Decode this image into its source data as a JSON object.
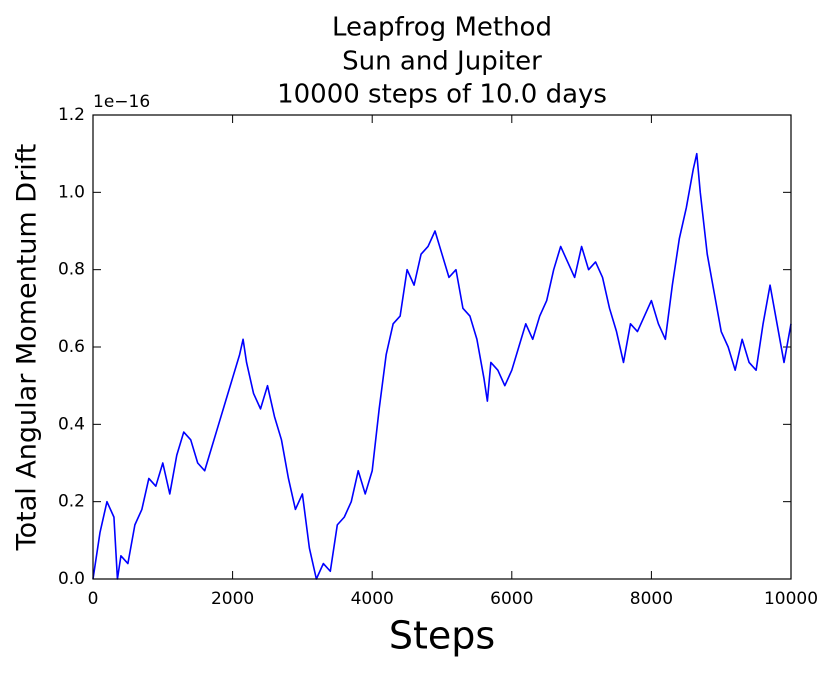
{
  "chart_data": {
    "type": "line",
    "title": [
      "Leapfrog Method",
      "Sun and Jupiter",
      "10000 steps of 10.0 days"
    ],
    "x_label": "Steps",
    "y_label": "Total Angular Momentum Drift",
    "y_offset_label": "1e−16",
    "xlim": [
      0,
      10000
    ],
    "xticks": [
      0,
      2000,
      4000,
      6000,
      8000,
      10000
    ],
    "ylim": [
      0,
      1.2
    ],
    "yticks": [
      {
        "value": 0,
        "label": "0.0"
      },
      0.2,
      0.4,
      0.6,
      0.8,
      {
        "value": 1,
        "label": "1.0"
      },
      1.2
    ],
    "grid": false,
    "series": [
      {
        "color": "#0000ff",
        "x": [
          0,
          100,
          200,
          300,
          350,
          400,
          500,
          600,
          700,
          800,
          900,
          1000,
          1100,
          1200,
          1300,
          1400,
          1500,
          1600,
          1700,
          1800,
          1900,
          2000,
          2100,
          2150,
          2200,
          2300,
          2400,
          2500,
          2600,
          2700,
          2800,
          2900,
          3000,
          3100,
          3200,
          3300,
          3400,
          3500,
          3600,
          3700,
          3800,
          3900,
          4000,
          4100,
          4200,
          4300,
          4400,
          4500,
          4600,
          4700,
          4800,
          4900,
          5000,
          5100,
          5200,
          5300,
          5400,
          5500,
          5600,
          5650,
          5700,
          5800,
          5900,
          6000,
          6100,
          6200,
          6300,
          6400,
          6500,
          6600,
          6700,
          6800,
          6900,
          7000,
          7100,
          7200,
          7300,
          7400,
          7500,
          7600,
          7700,
          7800,
          7900,
          8000,
          8100,
          8200,
          8300,
          8400,
          8500,
          8600,
          8650,
          8700,
          8800,
          8900,
          9000,
          9100,
          9200,
          9300,
          9400,
          9500,
          9600,
          9700,
          9800,
          9900,
          10000
        ],
        "values": [
          0,
          0.12,
          0.2,
          0.16,
          0,
          0.06,
          0.04,
          0.14,
          0.18,
          0.26,
          0.24,
          0.3,
          0.22,
          0.32,
          0.38,
          0.36,
          0.3,
          0.28,
          0.34,
          0.4,
          0.46,
          0.52,
          0.58,
          0.62,
          0.56,
          0.48,
          0.44,
          0.5,
          0.42,
          0.36,
          0.26,
          0.18,
          0.22,
          0.08,
          0,
          0.04,
          0.02,
          0.14,
          0.16,
          0.2,
          0.28,
          0.22,
          0.28,
          0.44,
          0.58,
          0.66,
          0.68,
          0.8,
          0.76,
          0.84,
          0.86,
          0.9,
          0.84,
          0.78,
          0.8,
          0.7,
          0.68,
          0.62,
          0.52,
          0.46,
          0.56,
          0.54,
          0.5,
          0.54,
          0.6,
          0.66,
          0.62,
          0.68,
          0.72,
          0.8,
          0.86,
          0.82,
          0.78,
          0.86,
          0.8,
          0.82,
          0.78,
          0.7,
          0.64,
          0.56,
          0.66,
          0.64,
          0.68,
          0.72,
          0.66,
          0.62,
          0.76,
          0.88,
          0.96,
          1.06,
          1.1,
          1,
          0.84,
          0.74,
          0.64,
          0.6,
          0.54,
          0.62,
          0.56,
          0.54,
          0.66,
          0.76,
          0.66,
          0.56,
          0.66
        ]
      }
    ]
  }
}
